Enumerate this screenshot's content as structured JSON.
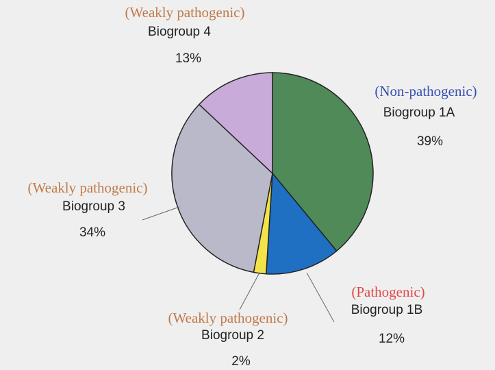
{
  "chart_data": {
    "type": "pie",
    "categories": [
      "Biogroup 1A",
      "Biogroup 1B",
      "Biogroup 2",
      "Biogroup 3",
      "Biogroup 4"
    ],
    "values": [
      39,
      12,
      2,
      34,
      13
    ],
    "value_labels": [
      "39%",
      "12%",
      "2%",
      "34%",
      "13%"
    ],
    "colors": [
      "#4f8a58",
      "#1f6fc2",
      "#f2e34a",
      "#b9b9c9",
      "#c9abd9"
    ],
    "annotations": [
      {
        "text": "(Non-pathogenic)",
        "color": "#3550b0"
      },
      {
        "text": "(Pathogenic)",
        "color": "#e04848"
      },
      {
        "text": "(Weakly pathogenic)",
        "color": "#c07a48"
      },
      {
        "text": "(Weakly pathogenic)",
        "color": "#c07a48"
      },
      {
        "text": "(Weakly pathogenic)",
        "color": "#c07a48"
      }
    ]
  }
}
